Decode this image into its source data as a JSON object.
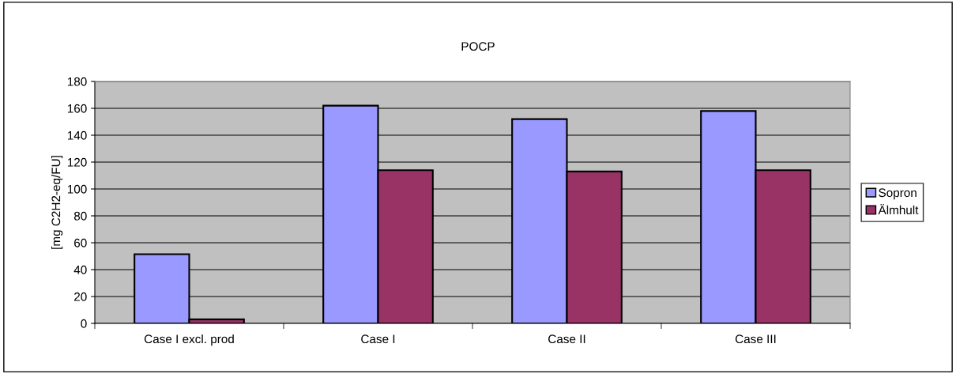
{
  "chart_data": {
    "type": "bar",
    "title": "POCP",
    "ylabel": "[mg C2H2-eq/FU]",
    "categories": [
      "Case I excl. prod",
      "Case I",
      "Case II",
      "Case III"
    ],
    "series": [
      {
        "name": "Sopron",
        "color": "#9999ff",
        "values": [
          51.5,
          162,
          152,
          158
        ]
      },
      {
        "name": "Älmhult",
        "color": "#993366",
        "values": [
          3,
          114,
          113,
          114
        ]
      }
    ],
    "ylim": [
      0,
      180
    ],
    "yticks": [
      0,
      20,
      40,
      60,
      80,
      100,
      120,
      140,
      160,
      180
    ],
    "grid": "y",
    "legend": "right"
  }
}
